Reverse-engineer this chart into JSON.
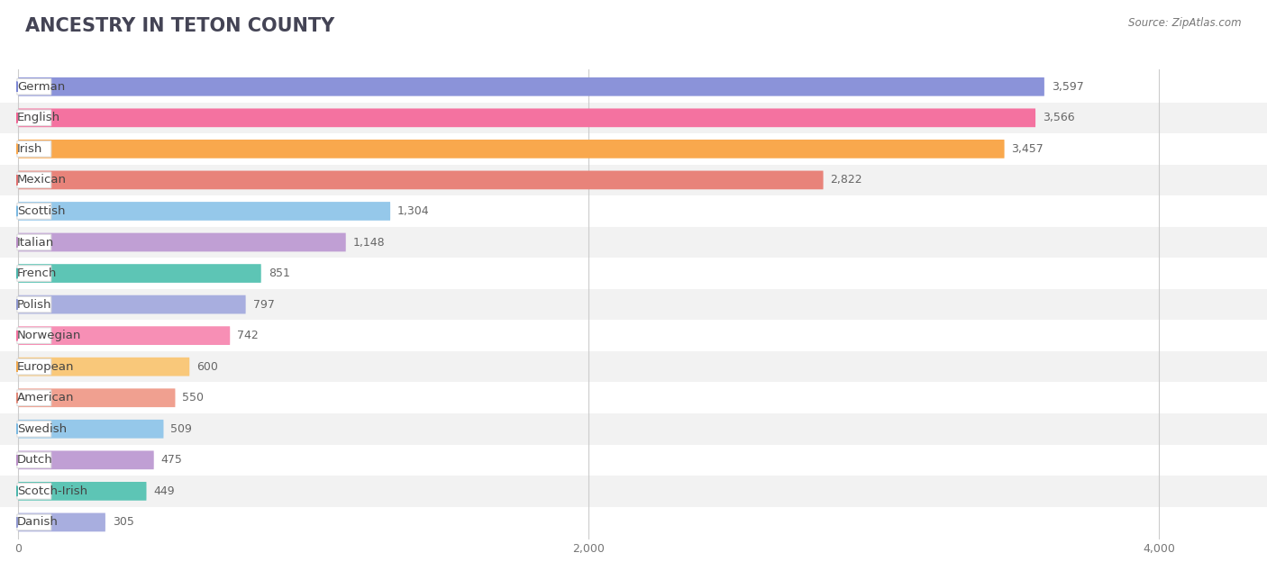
{
  "title": "ANCESTRY IN TETON COUNTY",
  "source": "Source: ZipAtlas.com",
  "categories": [
    "German",
    "English",
    "Irish",
    "Mexican",
    "Scottish",
    "Italian",
    "French",
    "Polish",
    "Norwegian",
    "European",
    "American",
    "Swedish",
    "Dutch",
    "Scotch-Irish",
    "Danish"
  ],
  "values": [
    3597,
    3566,
    3457,
    2822,
    1304,
    1148,
    851,
    797,
    742,
    600,
    550,
    509,
    475,
    449,
    305
  ],
  "bar_colors": [
    "#8B93D9",
    "#F472A0",
    "#F9A84D",
    "#E8837A",
    "#95C8EA",
    "#C09FD4",
    "#5DC5B5",
    "#A8AEDF",
    "#F78FB5",
    "#F9C87A",
    "#F0A090",
    "#95C8EA",
    "#C09FD4",
    "#5DC5B5",
    "#A8AEDF"
  ],
  "dot_colors": [
    "#7B86D4",
    "#F06292",
    "#F9A84D",
    "#E07070",
    "#7BB8E0",
    "#BA8FC7",
    "#4DB6AC",
    "#9098D0",
    "#F472A0",
    "#F0A84D",
    "#E08878",
    "#7BB8E0",
    "#BA8FC7",
    "#4DB6AC",
    "#9098D0"
  ],
  "row_colors": [
    "#ffffff",
    "#f2f2f2"
  ],
  "xlim": [
    0,
    4000
  ],
  "xticks": [
    0,
    2000,
    4000
  ],
  "background_color": "#ffffff",
  "title_fontsize": 15,
  "label_fontsize": 9.5,
  "value_fontsize": 9
}
